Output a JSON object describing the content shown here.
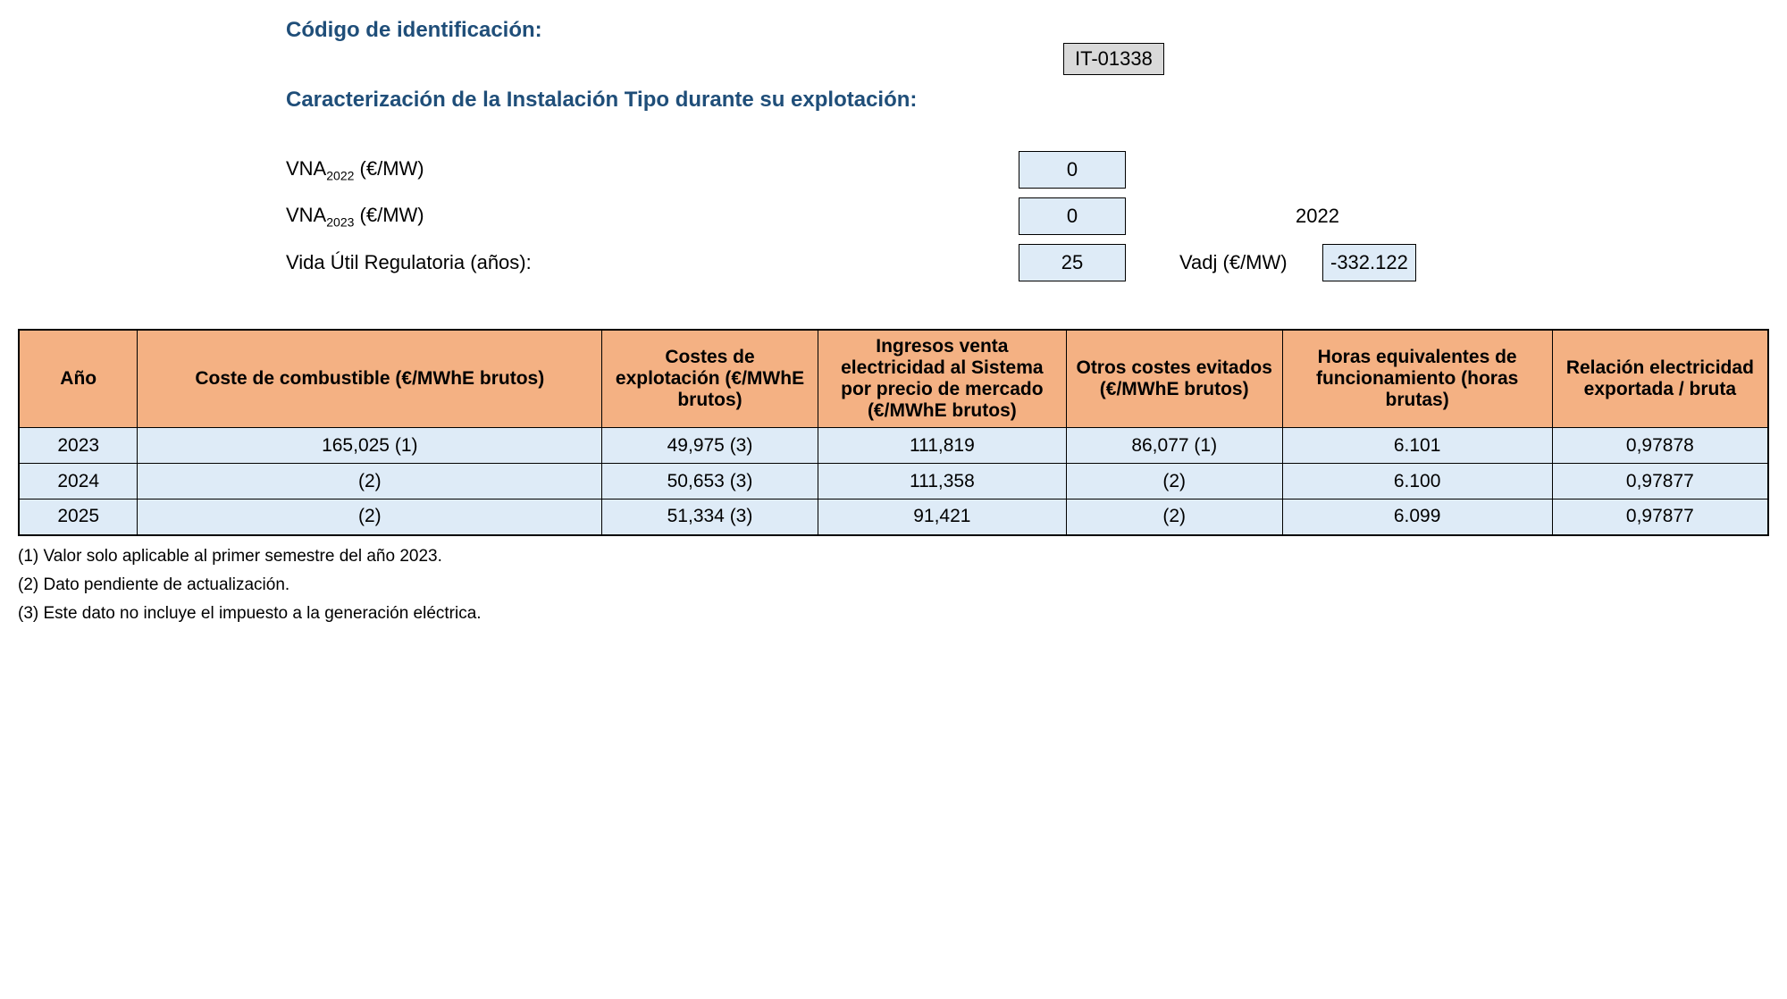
{
  "header": {
    "id_label": "Código de identificación:",
    "id_value": "IT-01338",
    "section_title": "Caracterización de la Instalación Tipo durante su explotación:"
  },
  "params": {
    "vna2022_label_html": "VNA<sub>2022</sub> (€/MW)",
    "vna2022_value": "0",
    "vna2023_label_html": "VNA<sub>2023</sub> (€/MW)",
    "vna2023_value": "0",
    "year_side": "2022",
    "vida_label": "Vida Útil Regulatoria (años):",
    "vida_value": "25",
    "vadj_label": "Vadj (€/MW)",
    "vadj_value": "-332.122"
  },
  "table": {
    "columns": [
      "Año",
      "Coste de combustible (€/MWhE brutos)",
      "Costes de explotación (€/MWhE brutos)",
      "Ingresos venta electricidad al Sistema por precio de mercado (€/MWhE brutos)",
      "Otros costes evitados (€/MWhE brutos)",
      "Horas equivalentes de funcionamiento (horas brutas)",
      "Relación electricidad exportada / bruta"
    ],
    "rows": [
      [
        "2023",
        "165,025 (1)",
        "49,975 (3)",
        "111,819",
        "86,077 (1)",
        "6.101",
        "0,97878"
      ],
      [
        "2024",
        "(2)",
        "50,653 (3)",
        "111,358",
        "(2)",
        "6.100",
        "0,97877"
      ],
      [
        "2025",
        "(2)",
        "51,334 (3)",
        "91,421",
        "(2)",
        "6.099",
        "0,97877"
      ]
    ]
  },
  "notes": [
    "(1) Valor solo aplicable al primer semestre del año 2023.",
    "(2) Dato pendiente de actualización.",
    "(3) Este dato no incluye el impuesto a la generación eléctrica."
  ],
  "style": {
    "header_bg": "#f4b183",
    "cell_bg": "#deebf7",
    "heading_color": "#1f4e79",
    "id_bg": "#d9d9d9"
  }
}
